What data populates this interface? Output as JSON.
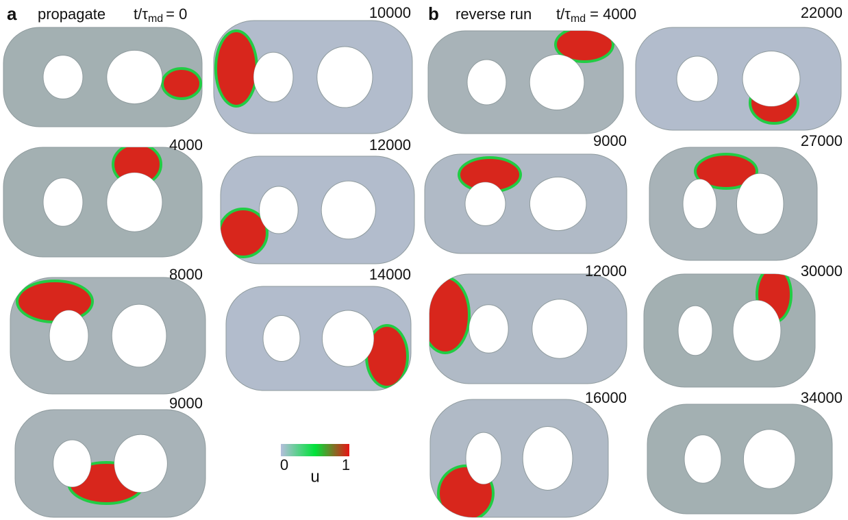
{
  "figure": {
    "panels": [
      {
        "letter": "a",
        "title": "propagate",
        "time": {
          "prefix": "t/",
          "symbol": "τ",
          "subscript": "md",
          "suffix": "= 0"
        },
        "frames": [
          {
            "time": "10000"
          },
          {
            "time": "4000"
          },
          {
            "time": "12000"
          },
          {
            "time": "8000"
          },
          {
            "time": "14000"
          },
          {
            "time": "9000"
          }
        ]
      },
      {
        "letter": "b",
        "title": "reverse run",
        "time": {
          "prefix": "t/",
          "symbol": "τ",
          "subscript": "md",
          "suffix": "= 4000"
        },
        "frames": [
          {
            "time": "22000"
          },
          {
            "time": "9000"
          },
          {
            "time": "27000"
          },
          {
            "time": "12000"
          },
          {
            "time": "30000"
          },
          {
            "time": "16000"
          },
          {
            "time": "34000"
          }
        ]
      }
    ],
    "colorbar": {
      "colors": [
        "#b4bedc",
        "#00e23a",
        "#e81414"
      ],
      "ticks": [
        "0",
        "1"
      ],
      "label": "u"
    }
  }
}
